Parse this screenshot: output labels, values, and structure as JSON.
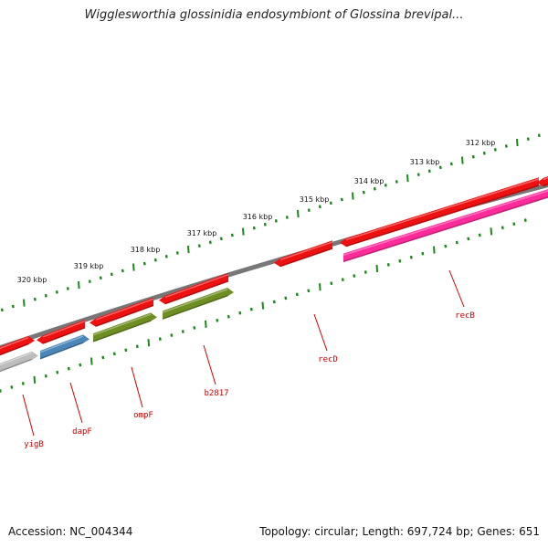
{
  "title": "Wigglesworthia glossinidia endosymbiont of Glossina brevipal...",
  "footer": {
    "accession": "Accession: NC_004344",
    "topology": "Topology: circular; Length: 697,724 bp; Genes: 651"
  },
  "scale": {
    "ticks": [
      "312 kbp",
      "313 kbp",
      "314 kbp",
      "315 kbp",
      "316 kbp",
      "317 kbp",
      "318 kbp",
      "319 kbp",
      "320 kbp"
    ]
  },
  "genes": [
    {
      "name": "recB",
      "color": "#ff2b9a"
    },
    {
      "name": "recD",
      "color": "#ee1111"
    },
    {
      "name": "b2817",
      "color": "#6e8e22"
    },
    {
      "name": "ompF",
      "color": "#6e8e22"
    },
    {
      "name": "dapF",
      "color": "#4a86b8"
    },
    {
      "name": "yigB",
      "color": "#bdbdbd"
    }
  ],
  "colors": {
    "backbone": "#777777",
    "tick": "#1a8a1a",
    "forward_gene": "#ee1111",
    "label_line": "#cc0000"
  }
}
